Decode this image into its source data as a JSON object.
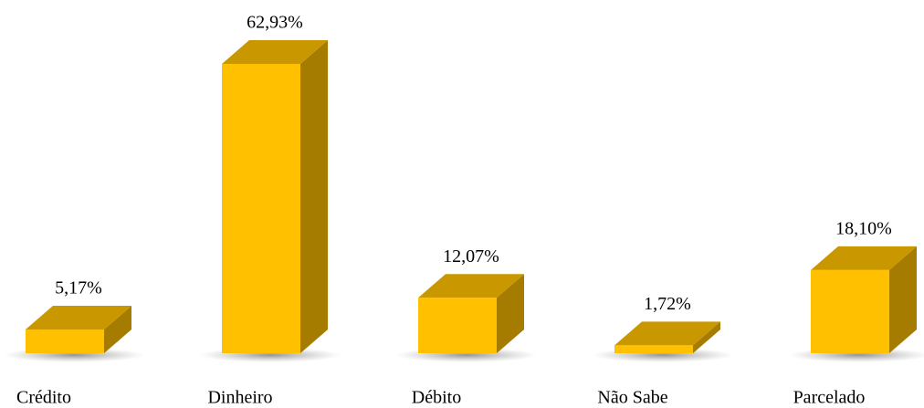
{
  "chart_data": {
    "type": "bar3d",
    "categories": [
      "Crédito",
      "Dinheiro",
      "Débito",
      "Não Sabe",
      "Parcelado"
    ],
    "values": [
      5.17,
      62.93,
      12.07,
      1.72,
      18.1
    ],
    "value_labels": [
      "5,17%",
      "62,93%",
      "12,07%",
      "1,72%",
      "18,10%"
    ],
    "color": "#ffc000"
  }
}
